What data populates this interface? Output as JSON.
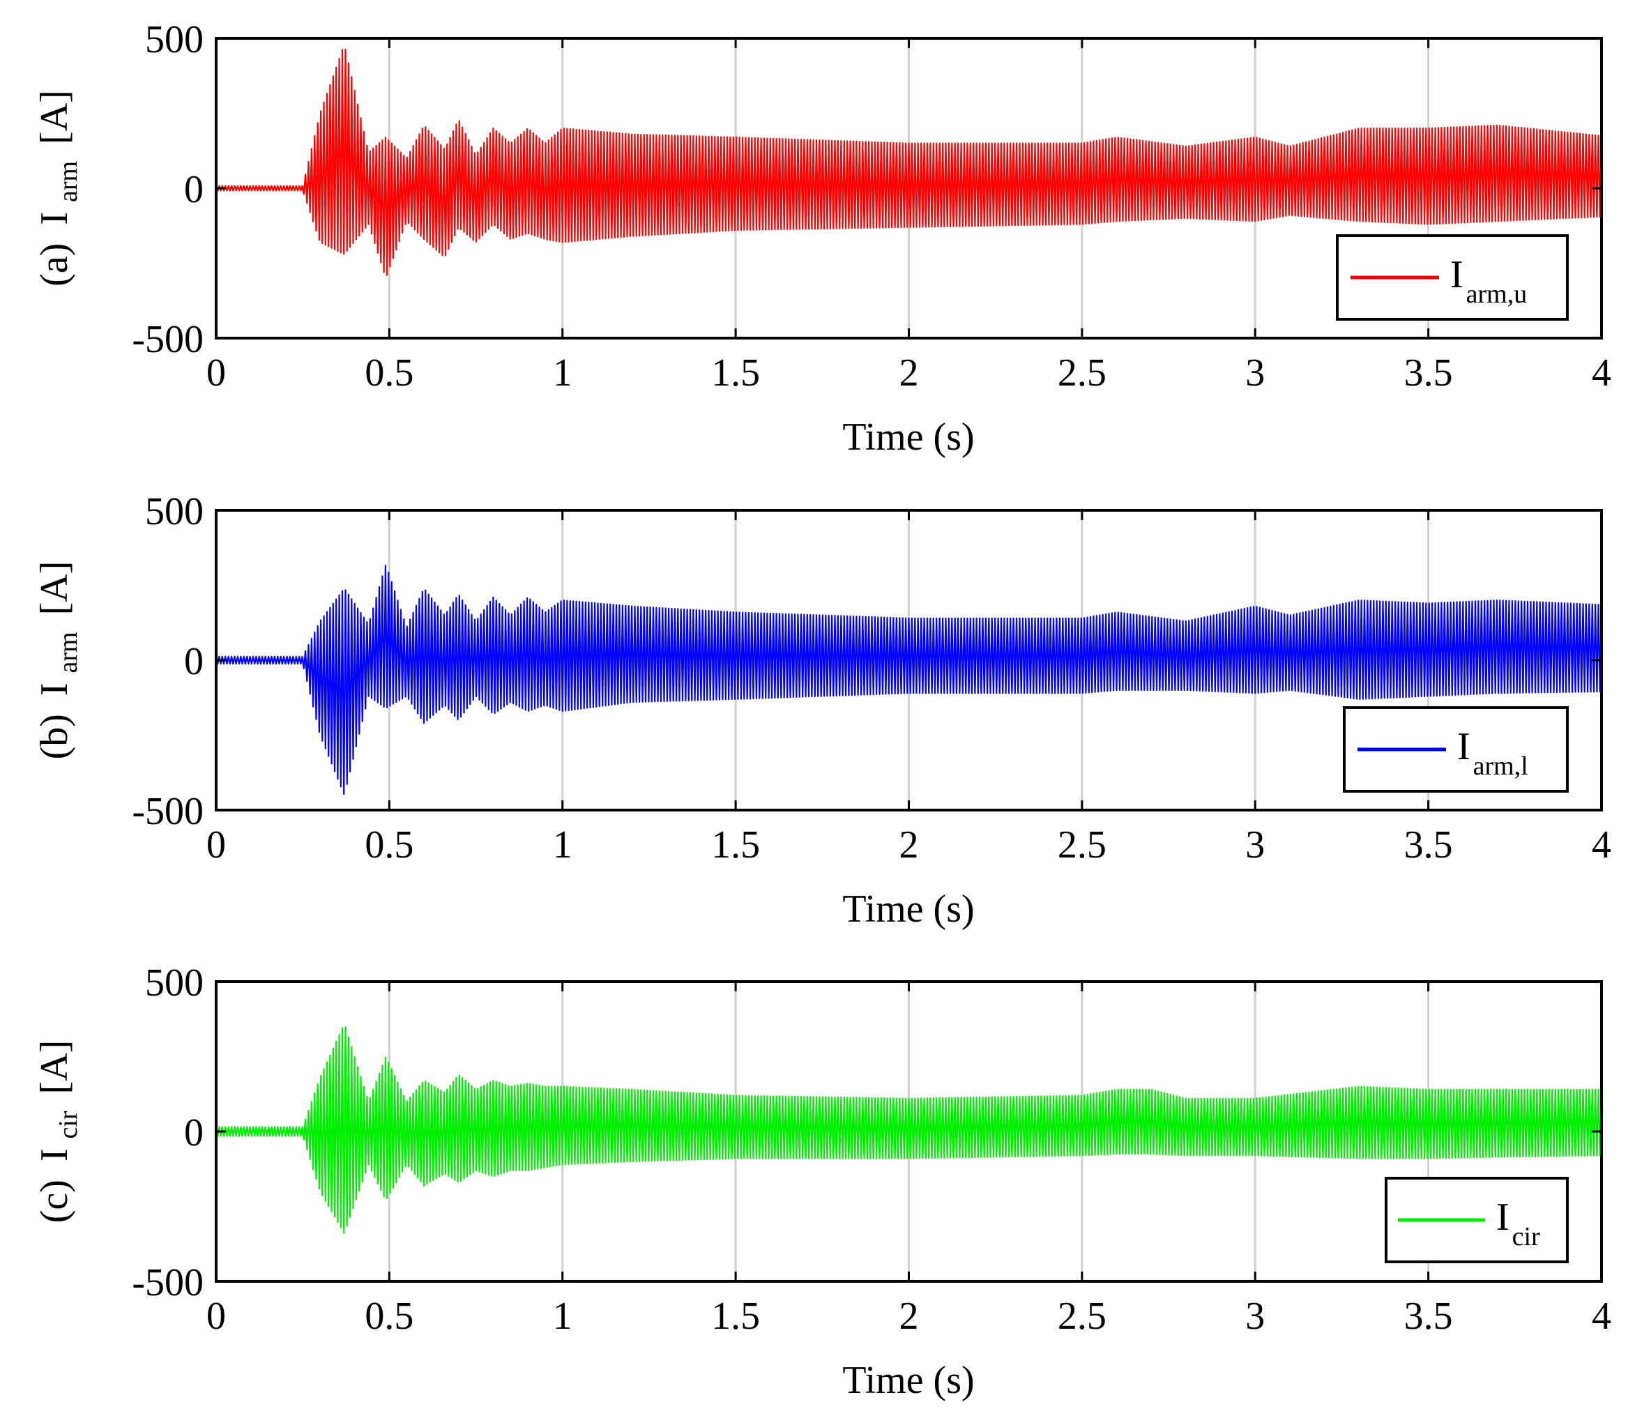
{
  "figure": {
    "panels": [
      {
        "tag": "(a)",
        "ylabel_main": "I",
        "ylabel_sub": "arm",
        "ylabel_unit": "[A]",
        "xlabel": "Time (s)",
        "legend_main": "I",
        "legend_sub": "arm,u",
        "color": "#ff0000"
      },
      {
        "tag": "(b)",
        "ylabel_main": "I",
        "ylabel_sub": "arm",
        "ylabel_unit": "[A]",
        "xlabel": "Time (s)",
        "legend_main": "I",
        "legend_sub": "arm,l",
        "color": "#0000ff"
      },
      {
        "tag": "(c)",
        "ylabel_main": "I",
        "ylabel_sub": "cir",
        "ylabel_unit": "[A]",
        "xlabel": "Time (s)",
        "legend_main": "I",
        "legend_sub": "cir",
        "color": "#00ee00"
      }
    ]
  },
  "chart_data": [
    {
      "type": "line",
      "title": "",
      "xlabel": "Time (s)",
      "ylabel": "(a) I_arm [A]",
      "xlim": [
        0,
        4
      ],
      "ylim": [
        -500,
        500
      ],
      "x_ticks": [
        "0",
        "0.5",
        "1",
        "1.5",
        "2",
        "2.5",
        "3",
        "3.5",
        "4"
      ],
      "y_ticks": [
        "500",
        "0",
        "-500"
      ],
      "grid": "vertical",
      "legend": "bottom-right",
      "series": [
        {
          "name": "I_arm,u",
          "color": "#ff0000",
          "envelope": {
            "t": [
              0,
              0.25,
              0.3,
              0.37,
              0.44,
              0.49,
              0.55,
              0.6,
              0.66,
              0.7,
              0.75,
              0.8,
              0.85,
              0.9,
              0.95,
              1.0,
              1.2,
              1.5,
              2.0,
              2.5,
              2.6,
              2.8,
              3.0,
              3.1,
              3.3,
              3.5,
              3.7,
              4.0
            ],
            "upper": [
              8,
              8,
              250,
              480,
              120,
              170,
              100,
              210,
              130,
              230,
              110,
              200,
              150,
              200,
              150,
              200,
              180,
              170,
              150,
              150,
              170,
              140,
              170,
              140,
              200,
              200,
              210,
              175
            ],
            "lower": [
              -8,
              -8,
              -180,
              -220,
              -120,
              -300,
              -110,
              -170,
              -230,
              -130,
              -180,
              -120,
              -170,
              -150,
              -170,
              -180,
              -160,
              -140,
              -130,
              -120,
              -110,
              -100,
              -110,
              -90,
              -110,
              -120,
              -110,
              -95
            ]
          }
        }
      ]
    },
    {
      "type": "line",
      "title": "",
      "xlabel": "Time (s)",
      "ylabel": "(b) I_arm [A]",
      "xlim": [
        0,
        4
      ],
      "ylim": [
        -500,
        500
      ],
      "x_ticks": [
        "0",
        "0.5",
        "1",
        "1.5",
        "2",
        "2.5",
        "3",
        "3.5",
        "4"
      ],
      "y_ticks": [
        "500",
        "0",
        "-500"
      ],
      "grid": "vertical",
      "legend": "bottom-right",
      "series": [
        {
          "name": "I_arm,l",
          "color": "#0000ff",
          "envelope": {
            "t": [
              0,
              0.25,
              0.3,
              0.37,
              0.44,
              0.49,
              0.55,
              0.6,
              0.66,
              0.7,
              0.75,
              0.8,
              0.85,
              0.9,
              0.95,
              1.0,
              1.2,
              1.5,
              2.0,
              2.5,
              2.6,
              2.8,
              3.0,
              3.1,
              3.3,
              3.5,
              3.7,
              4.0
            ],
            "upper": [
              12,
              12,
              130,
              240,
              120,
              320,
              110,
              240,
              150,
              220,
              130,
              210,
              150,
              210,
              160,
              200,
              180,
              160,
              140,
              140,
              160,
              130,
              180,
              150,
              200,
              190,
              200,
              185
            ],
            "lower": [
              -12,
              -12,
              -250,
              -450,
              -120,
              -160,
              -120,
              -210,
              -150,
              -200,
              -120,
              -180,
              -140,
              -170,
              -150,
              -170,
              -140,
              -130,
              -110,
              -110,
              -100,
              -100,
              -110,
              -100,
              -130,
              -120,
              -110,
              -105
            ]
          }
        }
      ]
    },
    {
      "type": "line",
      "title": "",
      "xlabel": "Time (s)",
      "ylabel": "(c) I_cir [A]",
      "xlim": [
        0,
        4
      ],
      "ylim": [
        -500,
        500
      ],
      "x_ticks": [
        "0",
        "0.5",
        "1",
        "1.5",
        "2",
        "2.5",
        "3",
        "3.5",
        "4"
      ],
      "y_ticks": [
        "500",
        "0",
        "-500"
      ],
      "grid": "vertical",
      "legend": "bottom-right",
      "series": [
        {
          "name": "I_cir",
          "color": "#00ee00",
          "envelope": {
            "t": [
              0,
              0.25,
              0.3,
              0.37,
              0.44,
              0.49,
              0.55,
              0.6,
              0.66,
              0.7,
              0.75,
              0.8,
              0.85,
              0.9,
              0.95,
              1.0,
              1.2,
              1.5,
              2.0,
              2.5,
              2.6,
              2.7,
              2.8,
              3.0,
              3.3,
              3.5,
              3.7,
              4.0
            ],
            "upper": [
              15,
              15,
              180,
              360,
              100,
              250,
              100,
              170,
              130,
              190,
              140,
              170,
              150,
              160,
              150,
              150,
              140,
              120,
              110,
              120,
              140,
              140,
              110,
              110,
              150,
              140,
              140,
              140
            ],
            "lower": [
              -15,
              -15,
              -200,
              -340,
              -110,
              -230,
              -110,
              -180,
              -140,
              -170,
              -130,
              -150,
              -130,
              -130,
              -120,
              -110,
              -100,
              -90,
              -90,
              -80,
              -75,
              -75,
              -80,
              -80,
              -90,
              -90,
              -85,
              -80
            ]
          }
        }
      ]
    }
  ]
}
